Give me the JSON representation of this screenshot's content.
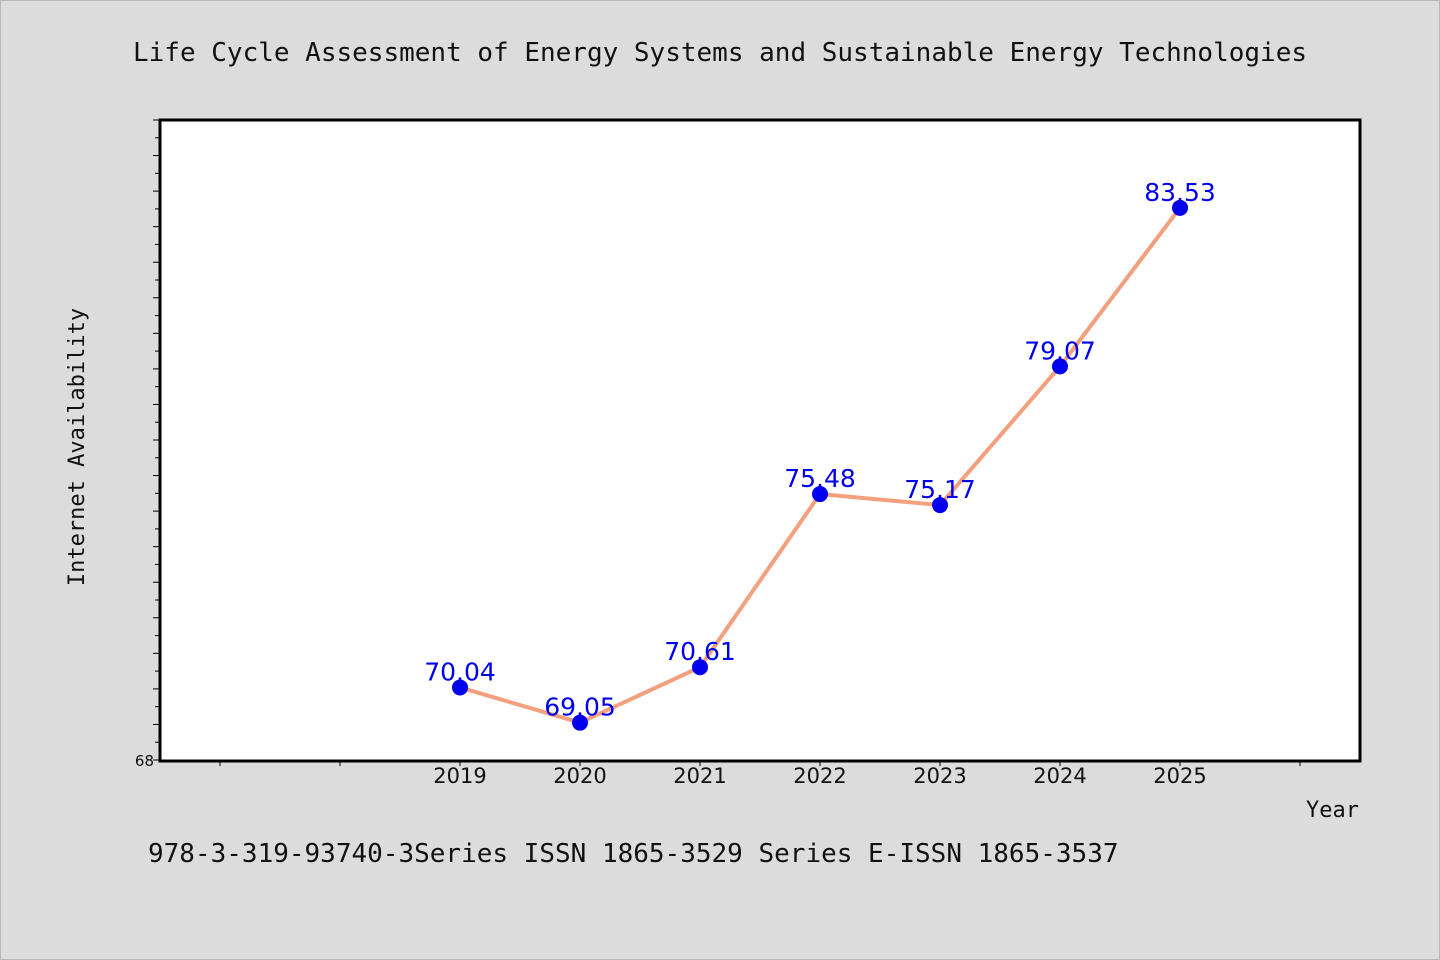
{
  "chart_data": {
    "type": "line",
    "title": "Life Cycle Assessment of Energy Systems and Sustainable Energy Technologies",
    "xlabel": "Year",
    "ylabel": "Internet Availability",
    "categories": [
      "2019",
      "2020",
      "2021",
      "2022",
      "2023",
      "2024",
      "2025"
    ],
    "series": [
      {
        "values": [
          70.04,
          69.05,
          70.61,
          75.48,
          75.17,
          79.07,
          83.53
        ],
        "labels": [
          "70.04",
          "69.05",
          "70.61",
          "75.48",
          "75.17",
          "79.07",
          "83.53"
        ]
      }
    ],
    "x_slots": 10,
    "first_category_slot": 3,
    "ylim": [
      68,
      86
    ],
    "ytick_labels": [
      {
        "value": 68,
        "label": "68"
      }
    ],
    "grid": false,
    "line_color": "#f4a07e",
    "marker_color": "#0000ee",
    "label_color": "#0000ee",
    "plot_background": "#ffffff",
    "page_background": "#dcdcdc"
  },
  "footer": "978-3-319-93740-3Series ISSN 1865-3529 Series E-ISSN 1865-3537"
}
